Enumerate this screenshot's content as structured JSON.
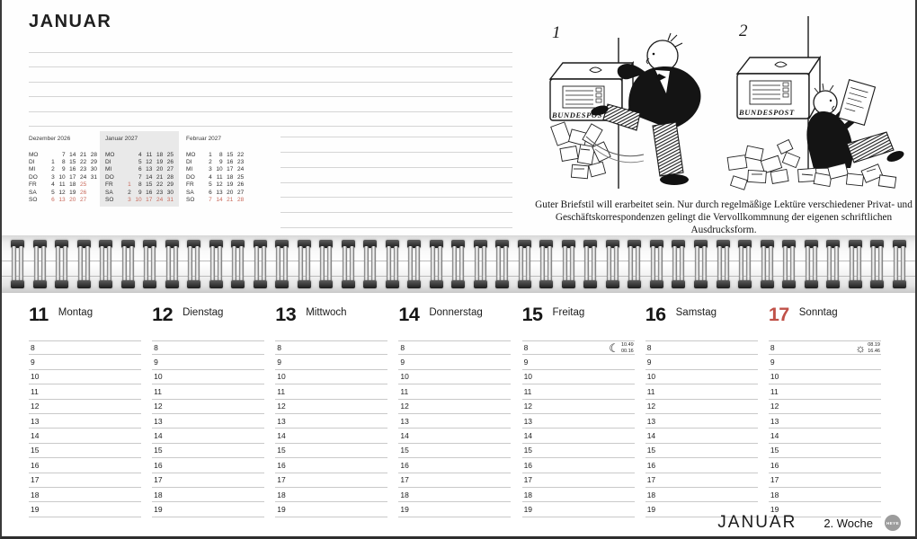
{
  "colors": {
    "accent_red": "#c05148",
    "mini_calendar_red": "#c96a5c",
    "highlight_gray": "#e9e9e9"
  },
  "top": {
    "title": "JANUAR",
    "notes": {
      "top_lines": 6,
      "side_lines": 7
    },
    "mini_calendars": [
      {
        "title": "Dezember 2026",
        "highlighted": false,
        "rows": [
          {
            "label": "MO",
            "cells": [
              "",
              "7",
              "14",
              "21",
              "28"
            ],
            "red": []
          },
          {
            "label": "DI",
            "cells": [
              "1",
              "8",
              "15",
              "22",
              "29"
            ],
            "red": []
          },
          {
            "label": "MI",
            "cells": [
              "2",
              "9",
              "16",
              "23",
              "30"
            ],
            "red": []
          },
          {
            "label": "DO",
            "cells": [
              "3",
              "10",
              "17",
              "24",
              "31"
            ],
            "red": []
          },
          {
            "label": "FR",
            "cells": [
              "4",
              "11",
              "18",
              "25",
              ""
            ],
            "red": [
              3
            ]
          },
          {
            "label": "SA",
            "cells": [
              "5",
              "12",
              "19",
              "26",
              ""
            ],
            "red": [
              3
            ]
          },
          {
            "label": "SO",
            "cells": [
              "6",
              "13",
              "20",
              "27",
              ""
            ],
            "red": [
              0,
              1,
              2,
              3
            ]
          }
        ]
      },
      {
        "title": "Januar 2027",
        "highlighted": true,
        "rows": [
          {
            "label": "MO",
            "cells": [
              "",
              "4",
              "11",
              "18",
              "25"
            ],
            "red": []
          },
          {
            "label": "DI",
            "cells": [
              "",
              "5",
              "12",
              "19",
              "26"
            ],
            "red": []
          },
          {
            "label": "MI",
            "cells": [
              "",
              "6",
              "13",
              "20",
              "27"
            ],
            "red": []
          },
          {
            "label": "DO",
            "cells": [
              "",
              "7",
              "14",
              "21",
              "28"
            ],
            "red": []
          },
          {
            "label": "FR",
            "cells": [
              "1",
              "8",
              "15",
              "22",
              "29"
            ],
            "red": [
              0
            ]
          },
          {
            "label": "SA",
            "cells": [
              "2",
              "9",
              "16",
              "23",
              "30"
            ],
            "red": []
          },
          {
            "label": "SO",
            "cells": [
              "3",
              "10",
              "17",
              "24",
              "31"
            ],
            "red": [
              0,
              1,
              2,
              3,
              4
            ]
          }
        ]
      },
      {
        "title": "Februar 2027",
        "highlighted": false,
        "rows": [
          {
            "label": "MO",
            "cells": [
              "1",
              "8",
              "15",
              "22",
              ""
            ],
            "red": []
          },
          {
            "label": "DI",
            "cells": [
              "2",
              "9",
              "16",
              "23",
              ""
            ],
            "red": []
          },
          {
            "label": "MI",
            "cells": [
              "3",
              "10",
              "17",
              "24",
              ""
            ],
            "red": []
          },
          {
            "label": "DO",
            "cells": [
              "4",
              "11",
              "18",
              "25",
              ""
            ],
            "red": []
          },
          {
            "label": "FR",
            "cells": [
              "5",
              "12",
              "19",
              "26",
              ""
            ],
            "red": []
          },
          {
            "label": "SA",
            "cells": [
              "6",
              "13",
              "20",
              "27",
              ""
            ],
            "red": []
          },
          {
            "label": "SO",
            "cells": [
              "7",
              "14",
              "21",
              "28",
              ""
            ],
            "red": [
              0,
              1,
              2,
              3
            ]
          }
        ]
      }
    ],
    "cartoon": {
      "panel1_number": "1",
      "panel2_number": "2",
      "mailbox_label": "BUNDESPOST",
      "caption_line1": "Guter Briefstil will erarbeitet sein. Nur durch regelmäßige Lektüre verschiedener Privat- und",
      "caption_line2": "Geschäftskorrespondenzen gelingt die Vervollkommnung der eigenen schriftlichen Ausdrucksform."
    }
  },
  "week": {
    "days": [
      {
        "num": "11",
        "name": "Montag",
        "red": false,
        "astro": null
      },
      {
        "num": "12",
        "name": "Dienstag",
        "red": false,
        "astro": null
      },
      {
        "num": "13",
        "name": "Mittwoch",
        "red": false,
        "astro": null
      },
      {
        "num": "14",
        "name": "Donnerstag",
        "red": false,
        "astro": null
      },
      {
        "num": "15",
        "name": "Freitag",
        "red": false,
        "astro": {
          "icon": "moon-icon",
          "times": [
            "10.49",
            "00.16"
          ]
        }
      },
      {
        "num": "16",
        "name": "Samstag",
        "red": false,
        "astro": null
      },
      {
        "num": "17",
        "name": "Sonntag",
        "red": true,
        "astro": {
          "icon": "sun-icon",
          "times": [
            "08.19",
            "16.46"
          ]
        }
      }
    ],
    "hours": [
      "8",
      "9",
      "10",
      "11",
      "12",
      "13",
      "14",
      "15",
      "16",
      "17",
      "18",
      "19"
    ]
  },
  "footer": {
    "month": "JANUAR",
    "week_label": "2. Woche",
    "logo": "HEYE"
  },
  "binding_loops": 41
}
